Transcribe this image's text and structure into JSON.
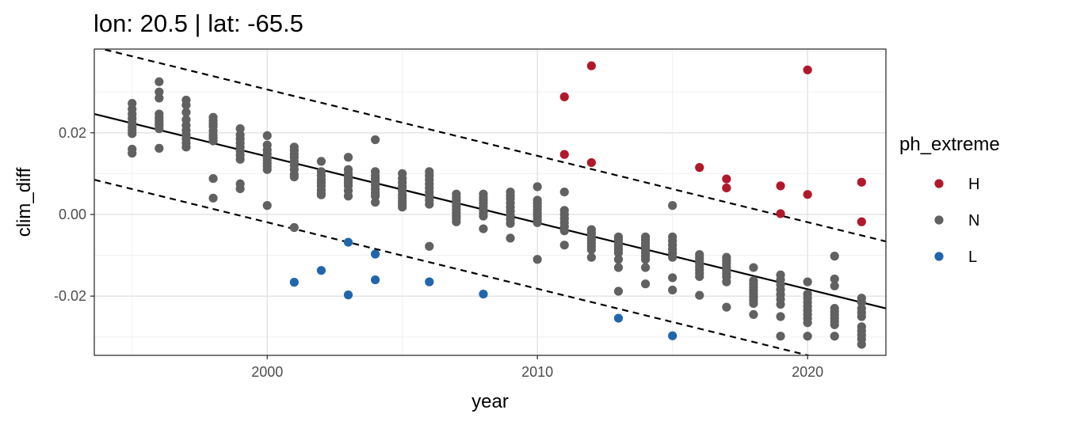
{
  "chart_data": {
    "type": "scatter",
    "title": "lon: 20.5 | lat: -65.5",
    "xlabel": "year",
    "ylabel": "clim_diff",
    "xlim": [
      1993.6,
      2022.9
    ],
    "ylim": [
      -0.0345,
      0.0405
    ],
    "x_ticks": [
      2000,
      2010,
      2020
    ],
    "x_tick_labels": [
      "2000",
      "2010",
      "2020"
    ],
    "y_ticks": [
      -0.02,
      0.0,
      0.02
    ],
    "y_tick_labels": [
      "-0.02",
      "0.00",
      "0.02"
    ],
    "grid": true,
    "legend": {
      "title": "ph_extreme",
      "position": "right",
      "entries": [
        "H",
        "N",
        "L"
      ]
    },
    "colors": {
      "H": "#b2182b",
      "N": "#616161",
      "L": "#2166ac",
      "trend": "#000000"
    },
    "trend_line": {
      "x": [
        1993.6,
        2022.9
      ],
      "y": [
        0.0246,
        -0.023
      ]
    },
    "band_upper": {
      "x": [
        1993.6,
        2022.9
      ],
      "y": [
        0.041,
        -0.0066
      ]
    },
    "band_lower": {
      "x": [
        1993.6,
        2022.9
      ],
      "y": [
        0.0085,
        -0.0392
      ]
    },
    "series": [
      {
        "name": "H",
        "x": [
          2011,
          2011,
          2012,
          2012,
          2016,
          2017,
          2017,
          2019,
          2019,
          2020,
          2020,
          2022,
          2022
        ],
        "y": [
          0.0288,
          0.0147,
          0.0364,
          0.0127,
          0.0115,
          0.0087,
          0.0065,
          0.007,
          0.0002,
          0.0354,
          0.0049,
          0.0079,
          -0.0018
        ]
      },
      {
        "name": "N",
        "x": [
          1995,
          1995,
          1995,
          1995,
          1995,
          1995,
          1995,
          1995,
          1995,
          1995,
          1996,
          1996,
          1996,
          1996,
          1996,
          1996,
          1996,
          1996,
          1996,
          1996,
          1997,
          1997,
          1997,
          1997,
          1997,
          1997,
          1997,
          1997,
          1997,
          1997,
          1998,
          1998,
          1998,
          1998,
          1998,
          1998,
          1998,
          1998,
          1998,
          1998,
          1999,
          1999,
          1999,
          1999,
          1999,
          1999,
          1999,
          1999,
          1999,
          1999,
          2000,
          2000,
          2000,
          2000,
          2000,
          2000,
          2000,
          2000,
          2000,
          2000,
          2001,
          2001,
          2001,
          2001,
          2001,
          2001,
          2001,
          2001,
          2001,
          2001,
          2002,
          2002,
          2002,
          2002,
          2002,
          2002,
          2002,
          2002,
          2002,
          2003,
          2003,
          2003,
          2003,
          2003,
          2003,
          2003,
          2003,
          2003,
          2004,
          2004,
          2004,
          2004,
          2004,
          2004,
          2004,
          2004,
          2004,
          2004,
          2005,
          2005,
          2005,
          2005,
          2005,
          2005,
          2005,
          2005,
          2005,
          2005,
          2006,
          2006,
          2006,
          2006,
          2006,
          2006,
          2006,
          2006,
          2006,
          2006,
          2007,
          2007,
          2007,
          2007,
          2007,
          2007,
          2007,
          2007,
          2007,
          2007,
          2008,
          2008,
          2008,
          2008,
          2008,
          2008,
          2008,
          2008,
          2008,
          2009,
          2009,
          2009,
          2009,
          2009,
          2009,
          2009,
          2009,
          2009,
          2009,
          2010,
          2010,
          2010,
          2010,
          2010,
          2010,
          2010,
          2010,
          2010,
          2010,
          2011,
          2011,
          2011,
          2011,
          2011,
          2011,
          2011,
          2011,
          2012,
          2012,
          2012,
          2012,
          2012,
          2012,
          2012,
          2012,
          2013,
          2013,
          2013,
          2013,
          2013,
          2013,
          2013,
          2013,
          2013,
          2014,
          2014,
          2014,
          2014,
          2014,
          2014,
          2014,
          2014,
          2014,
          2014,
          2015,
          2015,
          2015,
          2015,
          2015,
          2015,
          2015,
          2015,
          2015,
          2016,
          2016,
          2016,
          2016,
          2016,
          2016,
          2016,
          2016,
          2016,
          2017,
          2017,
          2017,
          2017,
          2017,
          2017,
          2017,
          2017,
          2017,
          2018,
          2018,
          2018,
          2018,
          2018,
          2018,
          2018,
          2018,
          2018,
          2018,
          2019,
          2019,
          2019,
          2019,
          2019,
          2019,
          2019,
          2019,
          2019,
          2020,
          2020,
          2020,
          2020,
          2020,
          2020,
          2020,
          2020,
          2020,
          2020,
          2021,
          2021,
          2021,
          2021,
          2021,
          2021,
          2021,
          2021,
          2021,
          2021,
          2022,
          2022,
          2022,
          2022,
          2022,
          2022,
          2022,
          2022,
          2022,
          2022
        ],
        "y": [
          0.0272,
          0.0258,
          0.0246,
          0.0235,
          0.0224,
          0.0214,
          0.0206,
          0.0198,
          0.016,
          0.015,
          0.0325,
          0.03,
          0.0285,
          0.0246,
          0.0237,
          0.023,
          0.0223,
          0.0218,
          0.021,
          0.0162,
          0.028,
          0.0268,
          0.025,
          0.0232,
          0.0218,
          0.0206,
          0.0195,
          0.0185,
          0.0175,
          0.0165,
          0.0238,
          0.023,
          0.0222,
          0.0215,
          0.0205,
          0.0195,
          0.0188,
          0.018,
          0.0088,
          0.004,
          0.021,
          0.0195,
          0.0185,
          0.0175,
          0.0165,
          0.0155,
          0.0145,
          0.0135,
          0.0075,
          0.0063,
          0.0193,
          0.017,
          0.0158,
          0.0148,
          0.014,
          0.0133,
          0.0125,
          0.0118,
          0.011,
          0.0022,
          0.0165,
          0.0157,
          0.0148,
          0.014,
          0.013,
          0.012,
          0.011,
          0.0098,
          0.0092,
          -0.0032,
          0.013,
          0.0105,
          0.0095,
          0.0085,
          0.0078,
          0.007,
          0.006,
          0.0052,
          0.0048,
          0.014,
          0.011,
          0.01,
          0.0093,
          0.0085,
          0.0078,
          0.007,
          0.0058,
          0.0045,
          0.0183,
          0.0105,
          0.0095,
          0.0088,
          0.008,
          0.0072,
          0.0062,
          0.0053,
          0.0045,
          0.003,
          0.01,
          0.0088,
          0.0078,
          0.0068,
          0.0058,
          0.0048,
          0.004,
          0.0032,
          0.0025,
          0.0018,
          0.0105,
          0.0095,
          0.0085,
          0.0075,
          0.0065,
          0.0055,
          0.0045,
          0.0035,
          0.0025,
          -0.0078,
          0.005,
          0.0042,
          0.0035,
          0.0028,
          0.002,
          0.0012,
          0.0004,
          -0.0004,
          -0.001,
          -0.0018,
          0.005,
          0.0042,
          0.0035,
          0.0028,
          0.002,
          0.0012,
          0.0004,
          -0.0004,
          -0.0035,
          0.0055,
          0.0046,
          0.0038,
          0.0028,
          0.0018,
          0.0008,
          -0.0002,
          -0.0012,
          -0.0022,
          -0.0058,
          0.0068,
          0.0035,
          0.0028,
          0.002,
          0.0012,
          0.0004,
          -0.0004,
          -0.0012,
          -0.002,
          -0.011,
          0.0055,
          0.001,
          0.0,
          -0.001,
          -0.002,
          -0.003,
          -0.004,
          -0.0075,
          -0.0037,
          -0.0045,
          -0.0053,
          -0.0062,
          -0.007,
          -0.0078,
          -0.0086,
          -0.0105,
          -0.0055,
          -0.0062,
          -0.007,
          -0.0078,
          -0.0086,
          -0.0094,
          -0.011,
          -0.013,
          -0.0188,
          -0.0055,
          -0.0062,
          -0.007,
          -0.0078,
          -0.0086,
          -0.0094,
          -0.0102,
          -0.011,
          -0.013,
          -0.017,
          0.0022,
          -0.0055,
          -0.0065,
          -0.0075,
          -0.0085,
          -0.0095,
          -0.0105,
          -0.0155,
          -0.0185,
          -0.0098,
          -0.0105,
          -0.0112,
          -0.012,
          -0.0128,
          -0.0136,
          -0.0144,
          -0.0152,
          -0.0198,
          -0.0105,
          -0.0113,
          -0.0121,
          -0.0129,
          -0.0137,
          -0.0145,
          -0.0153,
          -0.0165,
          -0.0227,
          -0.013,
          -0.0162,
          -0.017,
          -0.0178,
          -0.0186,
          -0.0194,
          -0.0202,
          -0.021,
          -0.0218,
          -0.0245,
          -0.0148,
          -0.016,
          -0.0172,
          -0.0184,
          -0.0196,
          -0.0208,
          -0.022,
          -0.025,
          -0.0298,
          -0.0165,
          -0.0195,
          -0.0205,
          -0.0215,
          -0.0225,
          -0.0235,
          -0.0245,
          -0.0255,
          -0.0265,
          -0.0298,
          -0.0102,
          -0.0158,
          -0.0175,
          -0.023,
          -0.0238,
          -0.0246,
          -0.0254,
          -0.0262,
          -0.027,
          -0.0298,
          -0.0205,
          -0.0215,
          -0.023,
          -0.024,
          -0.025,
          -0.0275,
          -0.0285,
          -0.0295,
          -0.0305,
          -0.0318
        ]
      },
      {
        "name": "L",
        "x": [
          2001,
          2002,
          2003,
          2003,
          2004,
          2004,
          2006,
          2008,
          2013,
          2015
        ],
        "y": [
          -0.0166,
          -0.0137,
          -0.0068,
          -0.0197,
          -0.0097,
          -0.016,
          -0.0165,
          -0.0195,
          -0.0254,
          -0.0297
        ]
      }
    ]
  }
}
